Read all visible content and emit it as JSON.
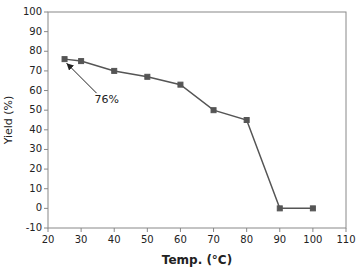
{
  "chart_data": {
    "type": "line",
    "x": [
      25,
      30,
      40,
      50,
      60,
      70,
      80,
      90,
      100
    ],
    "values": [
      76,
      75,
      70,
      67,
      63,
      50,
      45,
      0,
      0
    ],
    "xlabel": "Temp. (°C)",
    "ylabel": "Yield (%)",
    "xlim": [
      20,
      110
    ],
    "ylim": [
      -10,
      100
    ],
    "xticks": [
      20,
      30,
      40,
      50,
      60,
      70,
      80,
      90,
      100,
      110
    ],
    "yticks": [
      -10,
      0,
      10,
      20,
      30,
      40,
      50,
      60,
      70,
      80,
      90,
      100
    ],
    "color": "#555555",
    "marker": "square",
    "grid": false,
    "annotations": [
      {
        "text": "76%",
        "x": 25,
        "y": 76
      }
    ]
  }
}
